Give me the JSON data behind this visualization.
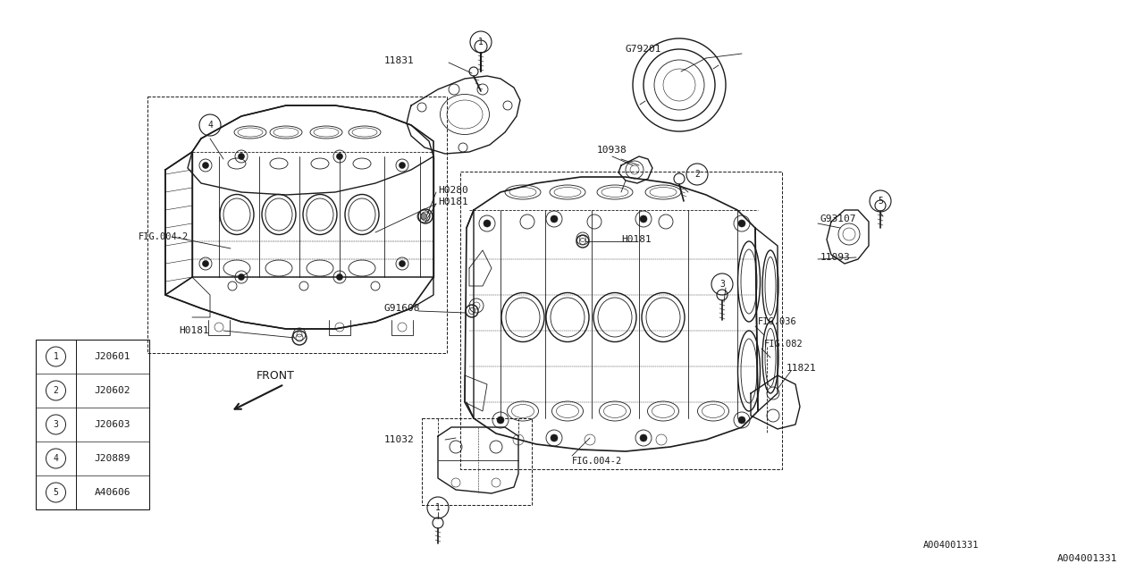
{
  "bg_color": "#ffffff",
  "line_color": "#1a1a1a",
  "fig_width": 12.8,
  "fig_height": 6.4,
  "diagram_id": "A004001331",
  "legend_items": [
    {
      "num": "1",
      "code": "J20601"
    },
    {
      "num": "2",
      "code": "J20602"
    },
    {
      "num": "3",
      "code": "J20603"
    },
    {
      "num": "4",
      "code": "J20889"
    },
    {
      "num": "5",
      "code": "A40606"
    }
  ]
}
